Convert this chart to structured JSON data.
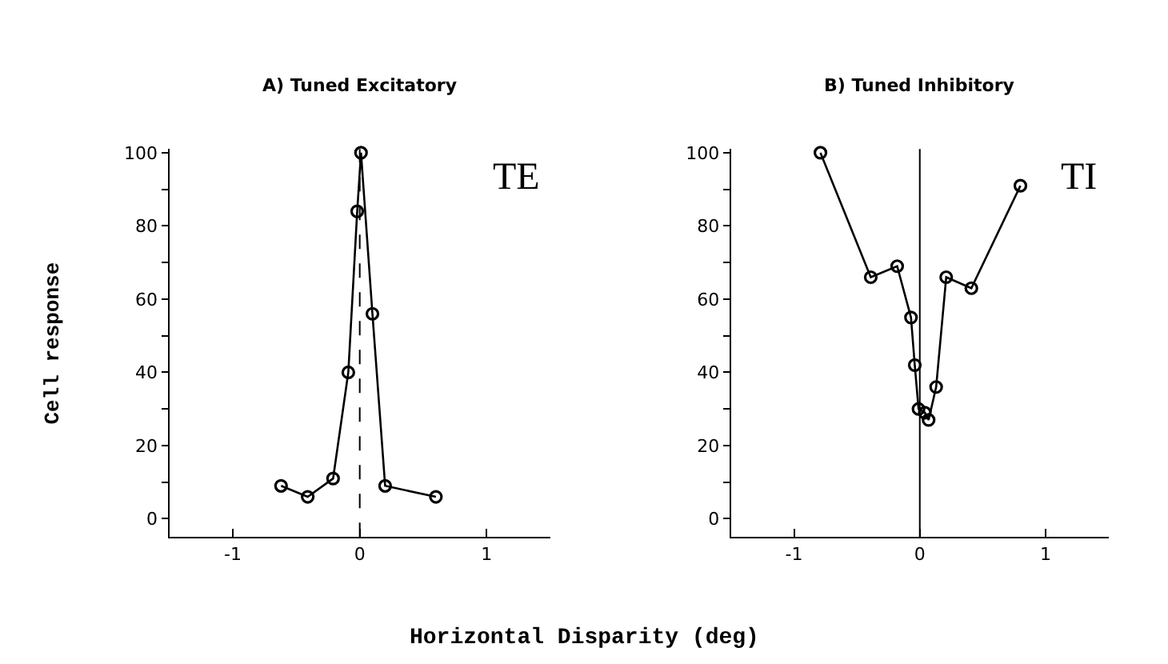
{
  "chart_data": [
    {
      "type": "line",
      "title": "A) Tuned Excitatory",
      "xlabel": "Horizontal Disparity (deg)",
      "ylabel": "Cell response",
      "annotations": [
        "TE"
      ],
      "series": [
        {
          "color": "#000000",
          "x": [
            -0.62,
            -0.41,
            -0.21,
            -0.09,
            -0.02,
            0.01,
            0.1,
            0.2,
            0.6
          ],
          "values": [
            9,
            6,
            11,
            40,
            84,
            100,
            56,
            9,
            6
          ]
        }
      ],
      "xlim": [
        -1.5,
        1.5
      ],
      "xticks": [
        -1,
        0,
        1
      ],
      "ylim": [
        -5,
        101
      ],
      "yticks": [
        0,
        {
          "value": 10,
          "label": null
        },
        20,
        {
          "value": 30,
          "label": null
        },
        40,
        {
          "value": 50,
          "label": null
        },
        60,
        {
          "value": 70,
          "label": null
        },
        80,
        {
          "value": 90,
          "label": null
        },
        100
      ],
      "ref_lines": [
        {
          "axis": "x",
          "value": 0,
          "color": "#000000",
          "line_style": "dashed"
        }
      ],
      "marker": "circle",
      "line_style": "solid"
    },
    {
      "type": "line",
      "title": "B) Tuned Inhibitory",
      "annotations": [
        "TI"
      ],
      "series": [
        {
          "color": "#000000",
          "x": [
            -0.79,
            -0.39,
            -0.18,
            -0.07,
            -0.04,
            -0.01,
            0.04,
            0.07,
            0.13,
            0.21,
            0.41,
            0.8
          ],
          "values": [
            100,
            66,
            69,
            55,
            42,
            30,
            29,
            27,
            36,
            66,
            63,
            91
          ]
        }
      ],
      "xlim": [
        -1.5,
        1.5
      ],
      "xticks": [
        -1,
        0,
        1
      ],
      "ylim": [
        -5,
        101
      ],
      "yticks": [
        0,
        {
          "value": 10,
          "label": null
        },
        20,
        {
          "value": 30,
          "label": null
        },
        40,
        {
          "value": 50,
          "label": null
        },
        60,
        {
          "value": 70,
          "label": null
        },
        80,
        {
          "value": 90,
          "label": null
        },
        100
      ],
      "ref_lines": [
        {
          "axis": "x",
          "value": 0,
          "color": "#000000",
          "line_style": "solid"
        }
      ],
      "marker": "circle",
      "line_style": "solid"
    }
  ]
}
